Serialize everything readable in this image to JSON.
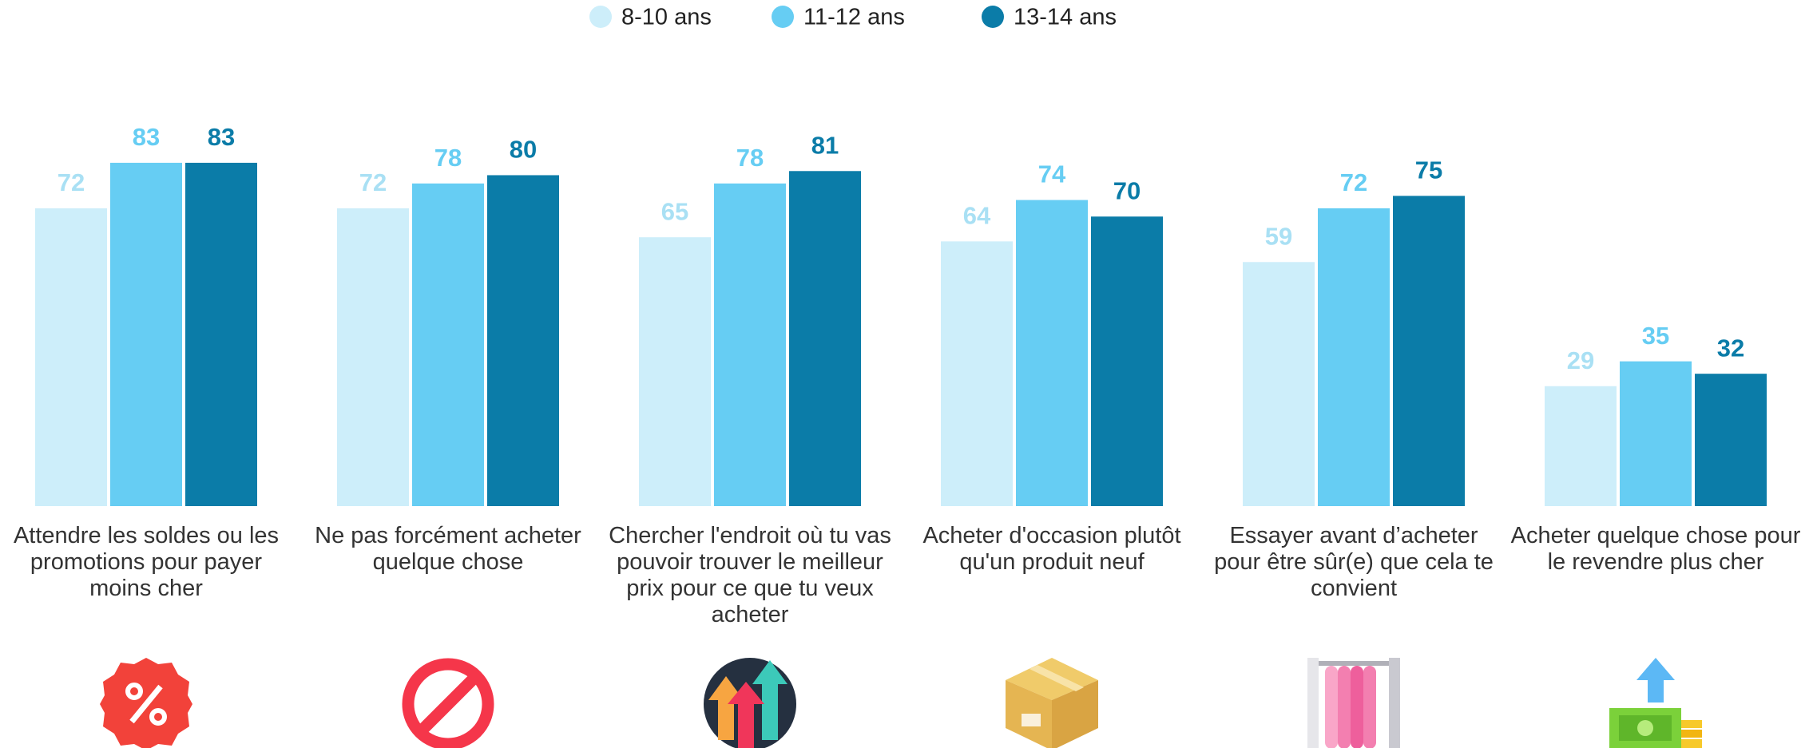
{
  "chart_data": {
    "type": "bar",
    "categories": [
      "Attendre les soldes ou les promotions pour payer moins cher",
      "Ne pas forcément acheter quelque chose",
      "Chercher l'endroit où tu vas pouvoir trouver le meilleur prix pour ce que tu veux acheter",
      "Acheter d'occasion plutôt qu'un produit neuf",
      "Essayer avant d’acheter pour être sûr(e) que cela te convient",
      "Acheter quelque chose pour le revendre plus cher"
    ],
    "series": [
      {
        "name": "8-10 ans",
        "color": "#cdeefa",
        "label_color": "#a9e0f4",
        "values": [
          72,
          72,
          65,
          64,
          59,
          29
        ]
      },
      {
        "name": "11-12 ans",
        "color": "#66cdf3",
        "label_color": "#66cdf3",
        "values": [
          83,
          78,
          78,
          74,
          72,
          35
        ]
      },
      {
        "name": "13-14 ans",
        "color": "#0b7ca8",
        "label_color": "#0b7ca8",
        "values": [
          83,
          80,
          81,
          70,
          75,
          32
        ]
      }
    ],
    "legend": "top"
  }
}
